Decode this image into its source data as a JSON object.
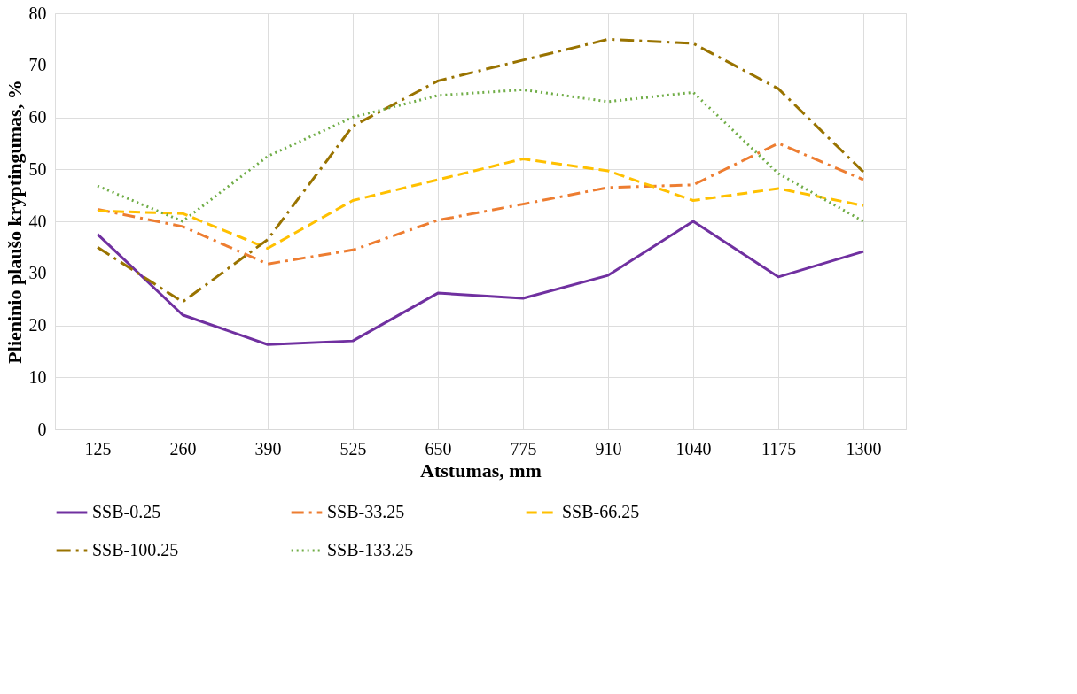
{
  "chart_data": {
    "type": "line",
    "xlabel": "Atstumas, mm",
    "ylabel": "Plieninio plaušo kryptingumas, %",
    "categories": [
      "125",
      "260",
      "390",
      "525",
      "650",
      "775",
      "910",
      "1040",
      "1175",
      "1300"
    ],
    "series": [
      {
        "name": "SSB-0.25",
        "color": "#7030a0",
        "line_style": "solid",
        "values": [
          37.5,
          22,
          16.3,
          17,
          26.2,
          25.2,
          29.6,
          40,
          29.3,
          34.2
        ]
      },
      {
        "name": "SSB-33.25",
        "color": "#ed7d31",
        "line_style": "dashdot",
        "values": [
          42.3,
          39,
          31.8,
          34.5,
          40.2,
          43.3,
          46.5,
          47,
          55,
          48
        ]
      },
      {
        "name": "SSB-66.25",
        "color": "#ffc000",
        "line_style": "dashed",
        "values": [
          42,
          41.5,
          34.8,
          44,
          48,
          52,
          49.7,
          44,
          46.3,
          43
        ]
      },
      {
        "name": "SSB-100.25",
        "color": "#997300",
        "line_style": "longdashdot",
        "values": [
          35,
          24.5,
          36.5,
          58.3,
          67,
          71,
          75,
          74.2,
          65.5,
          49.5
        ]
      },
      {
        "name": "SSB-133.25",
        "color": "#70ad47",
        "line_style": "dotted",
        "values": [
          46.8,
          40,
          52.5,
          60,
          64.2,
          65.3,
          63,
          64.8,
          49.2,
          40
        ]
      }
    ],
    "ylim": [
      0,
      80
    ],
    "yticks": [
      0,
      10,
      20,
      30,
      40,
      50,
      60,
      70,
      80
    ],
    "grid": true,
    "legend": "bottom",
    "marker": "none"
  }
}
